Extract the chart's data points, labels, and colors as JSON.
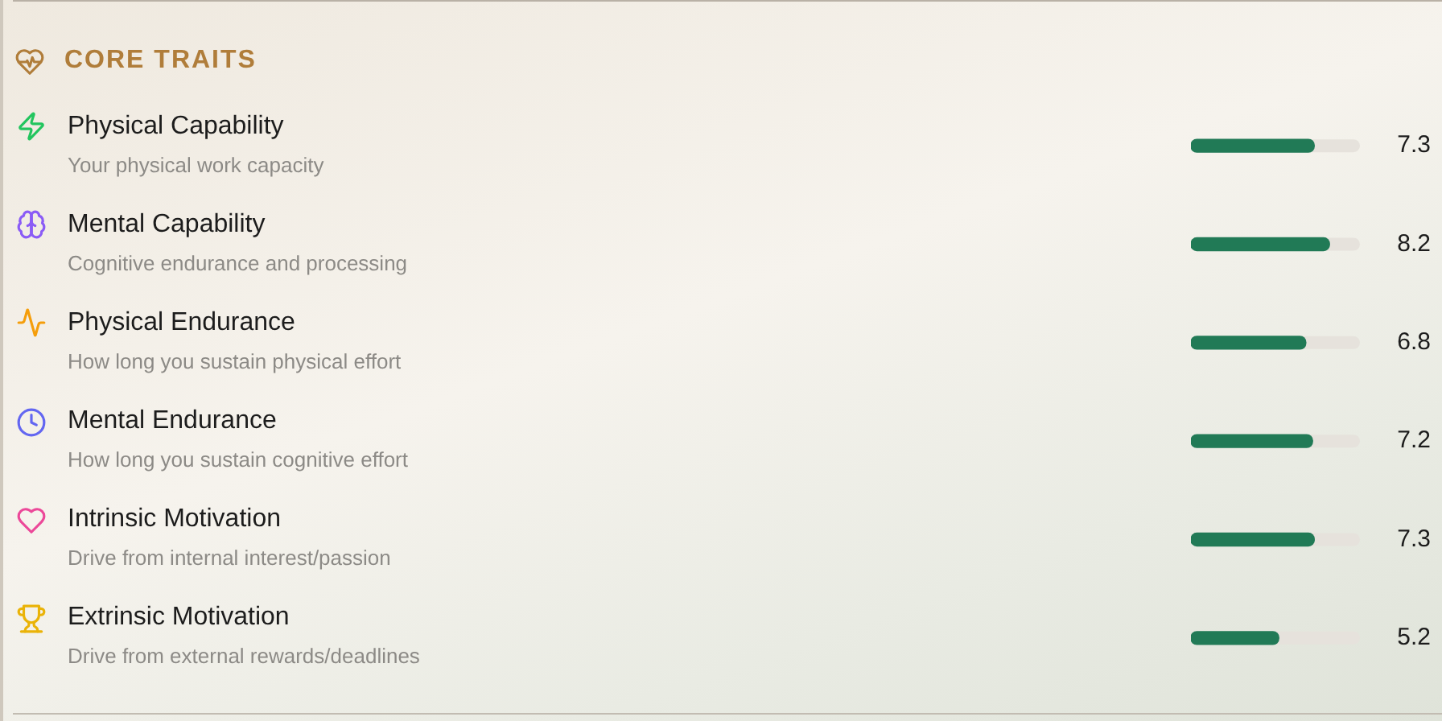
{
  "chart_data": {
    "type": "bar",
    "orientation": "horizontal",
    "title": "CORE TRAITS",
    "categories": [
      "Physical Capability",
      "Mental Capability",
      "Physical Endurance",
      "Mental Endurance",
      "Intrinsic Motivation",
      "Extrinsic Motivation"
    ],
    "values": [
      7.3,
      8.2,
      6.8,
      7.2,
      7.3,
      5.2
    ],
    "color": "#217a56",
    "xlim": [
      0,
      10
    ],
    "data_labels": true,
    "tick_labels": "y",
    "annotations": [
      "Your physical work capacity",
      "Cognitive endurance and processing",
      "How long you sustain physical effort",
      "How long you sustain cognitive effort",
      "Drive from internal interest/passion",
      "Drive from external rewards/deadlines"
    ]
  }
}
